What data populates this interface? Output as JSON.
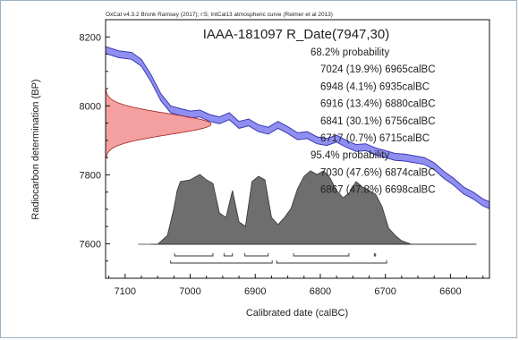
{
  "chart_data": {
    "type": "line",
    "credit": "OxCal v4.3.2 Bronk Ramsey (2017); r:5; IntCal13 atmospheric curve (Reimer et al 2013)",
    "title": "IAAA-181097 R_Date(7947,30)",
    "xlabel": "Calibrated date (calBC)",
    "ylabel": "Radiocarbon determination (BP)",
    "xlim": [
      7130,
      6540
    ],
    "ylim": [
      7500,
      8250
    ],
    "x_ticks": [
      "7100",
      "7000",
      "6900",
      "6800",
      "6700",
      "6600"
    ],
    "y_ticks": [
      "7600",
      "7800",
      "8000",
      "8200"
    ],
    "x_tick_values": [
      7100,
      7000,
      6900,
      6800,
      6700,
      6600
    ],
    "y_tick_values": [
      7600,
      7800,
      8000,
      8200
    ],
    "calibration_curve": {
      "color": "#8f8ff2",
      "x": [
        7130,
        7110,
        7090,
        7075,
        7060,
        7045,
        7030,
        7015,
        7000,
        6985,
        6970,
        6955,
        6940,
        6925,
        6910,
        6895,
        6880,
        6865,
        6850,
        6835,
        6820,
        6805,
        6790,
        6775,
        6760,
        6745,
        6730,
        6715,
        6700,
        6685,
        6670,
        6655,
        6640,
        6625,
        6610,
        6595,
        6580,
        6565,
        6550,
        6540
      ],
      "y": [
        8162,
        8150,
        8145,
        8125,
        8080,
        8025,
        7990,
        7982,
        7975,
        7978,
        7965,
        7958,
        7970,
        7945,
        7952,
        7935,
        7928,
        7945,
        7930,
        7912,
        7915,
        7900,
        7895,
        7905,
        7890,
        7878,
        7880,
        7868,
        7860,
        7852,
        7850,
        7845,
        7840,
        7825,
        7800,
        7780,
        7755,
        7740,
        7720,
        7712
      ],
      "sigma": [
        10,
        10,
        10,
        10,
        10,
        10,
        10,
        10,
        10,
        10,
        10,
        10,
        10,
        10,
        10,
        10,
        10,
        10,
        10,
        10,
        10,
        10,
        10,
        10,
        10,
        10,
        10,
        10,
        10,
        10,
        10,
        10,
        10,
        10,
        10,
        10,
        10,
        10,
        10,
        10
      ]
    },
    "radiocarbon_date": {
      "mean": 7947,
      "sigma": 30,
      "color": "#f08080"
    },
    "calibrated_distribution": {
      "color": "#6e6e6e",
      "x": [
        7080,
        7050,
        7035,
        7025,
        7020,
        7015,
        7000,
        6985,
        6975,
        6965,
        6955,
        6945,
        6935,
        6925,
        6915,
        6905,
        6895,
        6885,
        6875,
        6865,
        6855,
        6845,
        6835,
        6825,
        6815,
        6805,
        6795,
        6785,
        6775,
        6765,
        6755,
        6745,
        6735,
        6725,
        6715,
        6705,
        6695,
        6685,
        6675,
        6660,
        6560
      ],
      "density": [
        0.0,
        0.0,
        0.1,
        0.4,
        0.6,
        0.7,
        0.72,
        0.78,
        0.72,
        0.68,
        0.35,
        0.3,
        0.6,
        0.25,
        0.2,
        0.7,
        0.76,
        0.72,
        0.3,
        0.22,
        0.3,
        0.4,
        0.62,
        0.76,
        0.82,
        0.78,
        0.82,
        0.74,
        0.6,
        0.52,
        0.58,
        0.7,
        0.64,
        0.6,
        0.56,
        0.42,
        0.18,
        0.1,
        0.04,
        0.0,
        0.0
      ]
    },
    "text_block": [
      "68.2% probability",
      "7024 (19.9%) 6965calBC",
      "6948 (4.1%) 6935calBC",
      "6916 (13.4%) 6880calBC",
      "6841 (30.1%) 6756calBC",
      "6717 (0.7%) 6715calBC",
      "95.4% probability",
      "7030 (47.6%) 6874calBC",
      "6867 (47.8%) 6698calBC"
    ],
    "ranges_68": [
      [
        7024,
        6965
      ],
      [
        6948,
        6935
      ],
      [
        6916,
        6880
      ],
      [
        6841,
        6756
      ],
      [
        6717,
        6715
      ]
    ],
    "ranges_95": [
      [
        7030,
        6874
      ],
      [
        6867,
        6698
      ]
    ]
  }
}
